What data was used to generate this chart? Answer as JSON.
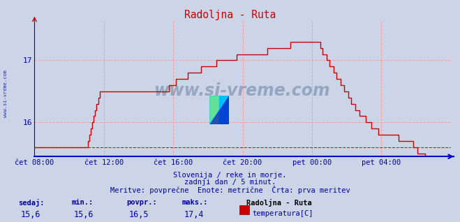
{
  "title": "Radoljna - Ruta",
  "title_color": "#cc0000",
  "bg_color": "#ccd5e8",
  "plot_bg_color": "#ccd5e8",
  "line_color": "#cc0000",
  "axis_color": "#0000cc",
  "grid_color": "#ff9999",
  "text_color": "#0000aa",
  "yticks": [
    16,
    17
  ],
  "ymin": 15.45,
  "ymax": 17.65,
  "xtick_labels": [
    "čet 08:00",
    "čet 12:00",
    "čet 16:00",
    "čet 20:00",
    "pet 00:00",
    "pet 04:00"
  ],
  "xtick_positions": [
    0,
    48,
    96,
    144,
    192,
    240
  ],
  "total_points": 288,
  "min_value": 15.6,
  "avg_value": 16.5,
  "max_value": 17.4,
  "current_value": 15.6,
  "footer_line1": "Slovenija / reke in morje.",
  "footer_line2": "zadnji dan / 5 minut.",
  "footer_line3": "Meritve: povprečne  Enote: metrične  Črta: prva meritev",
  "legend_title": "Radoljna - Ruta",
  "legend_label": "temperatura[C]",
  "stat_labels": [
    "sedaj:",
    "min.:",
    "povpr.:",
    "maks.:"
  ],
  "stat_values": [
    "15,6",
    "15,6",
    "16,5",
    "17,4"
  ],
  "watermark": "www.si-vreme.com",
  "watermark_color": "#1a3a6a",
  "side_label": "www.si-vreme.com"
}
